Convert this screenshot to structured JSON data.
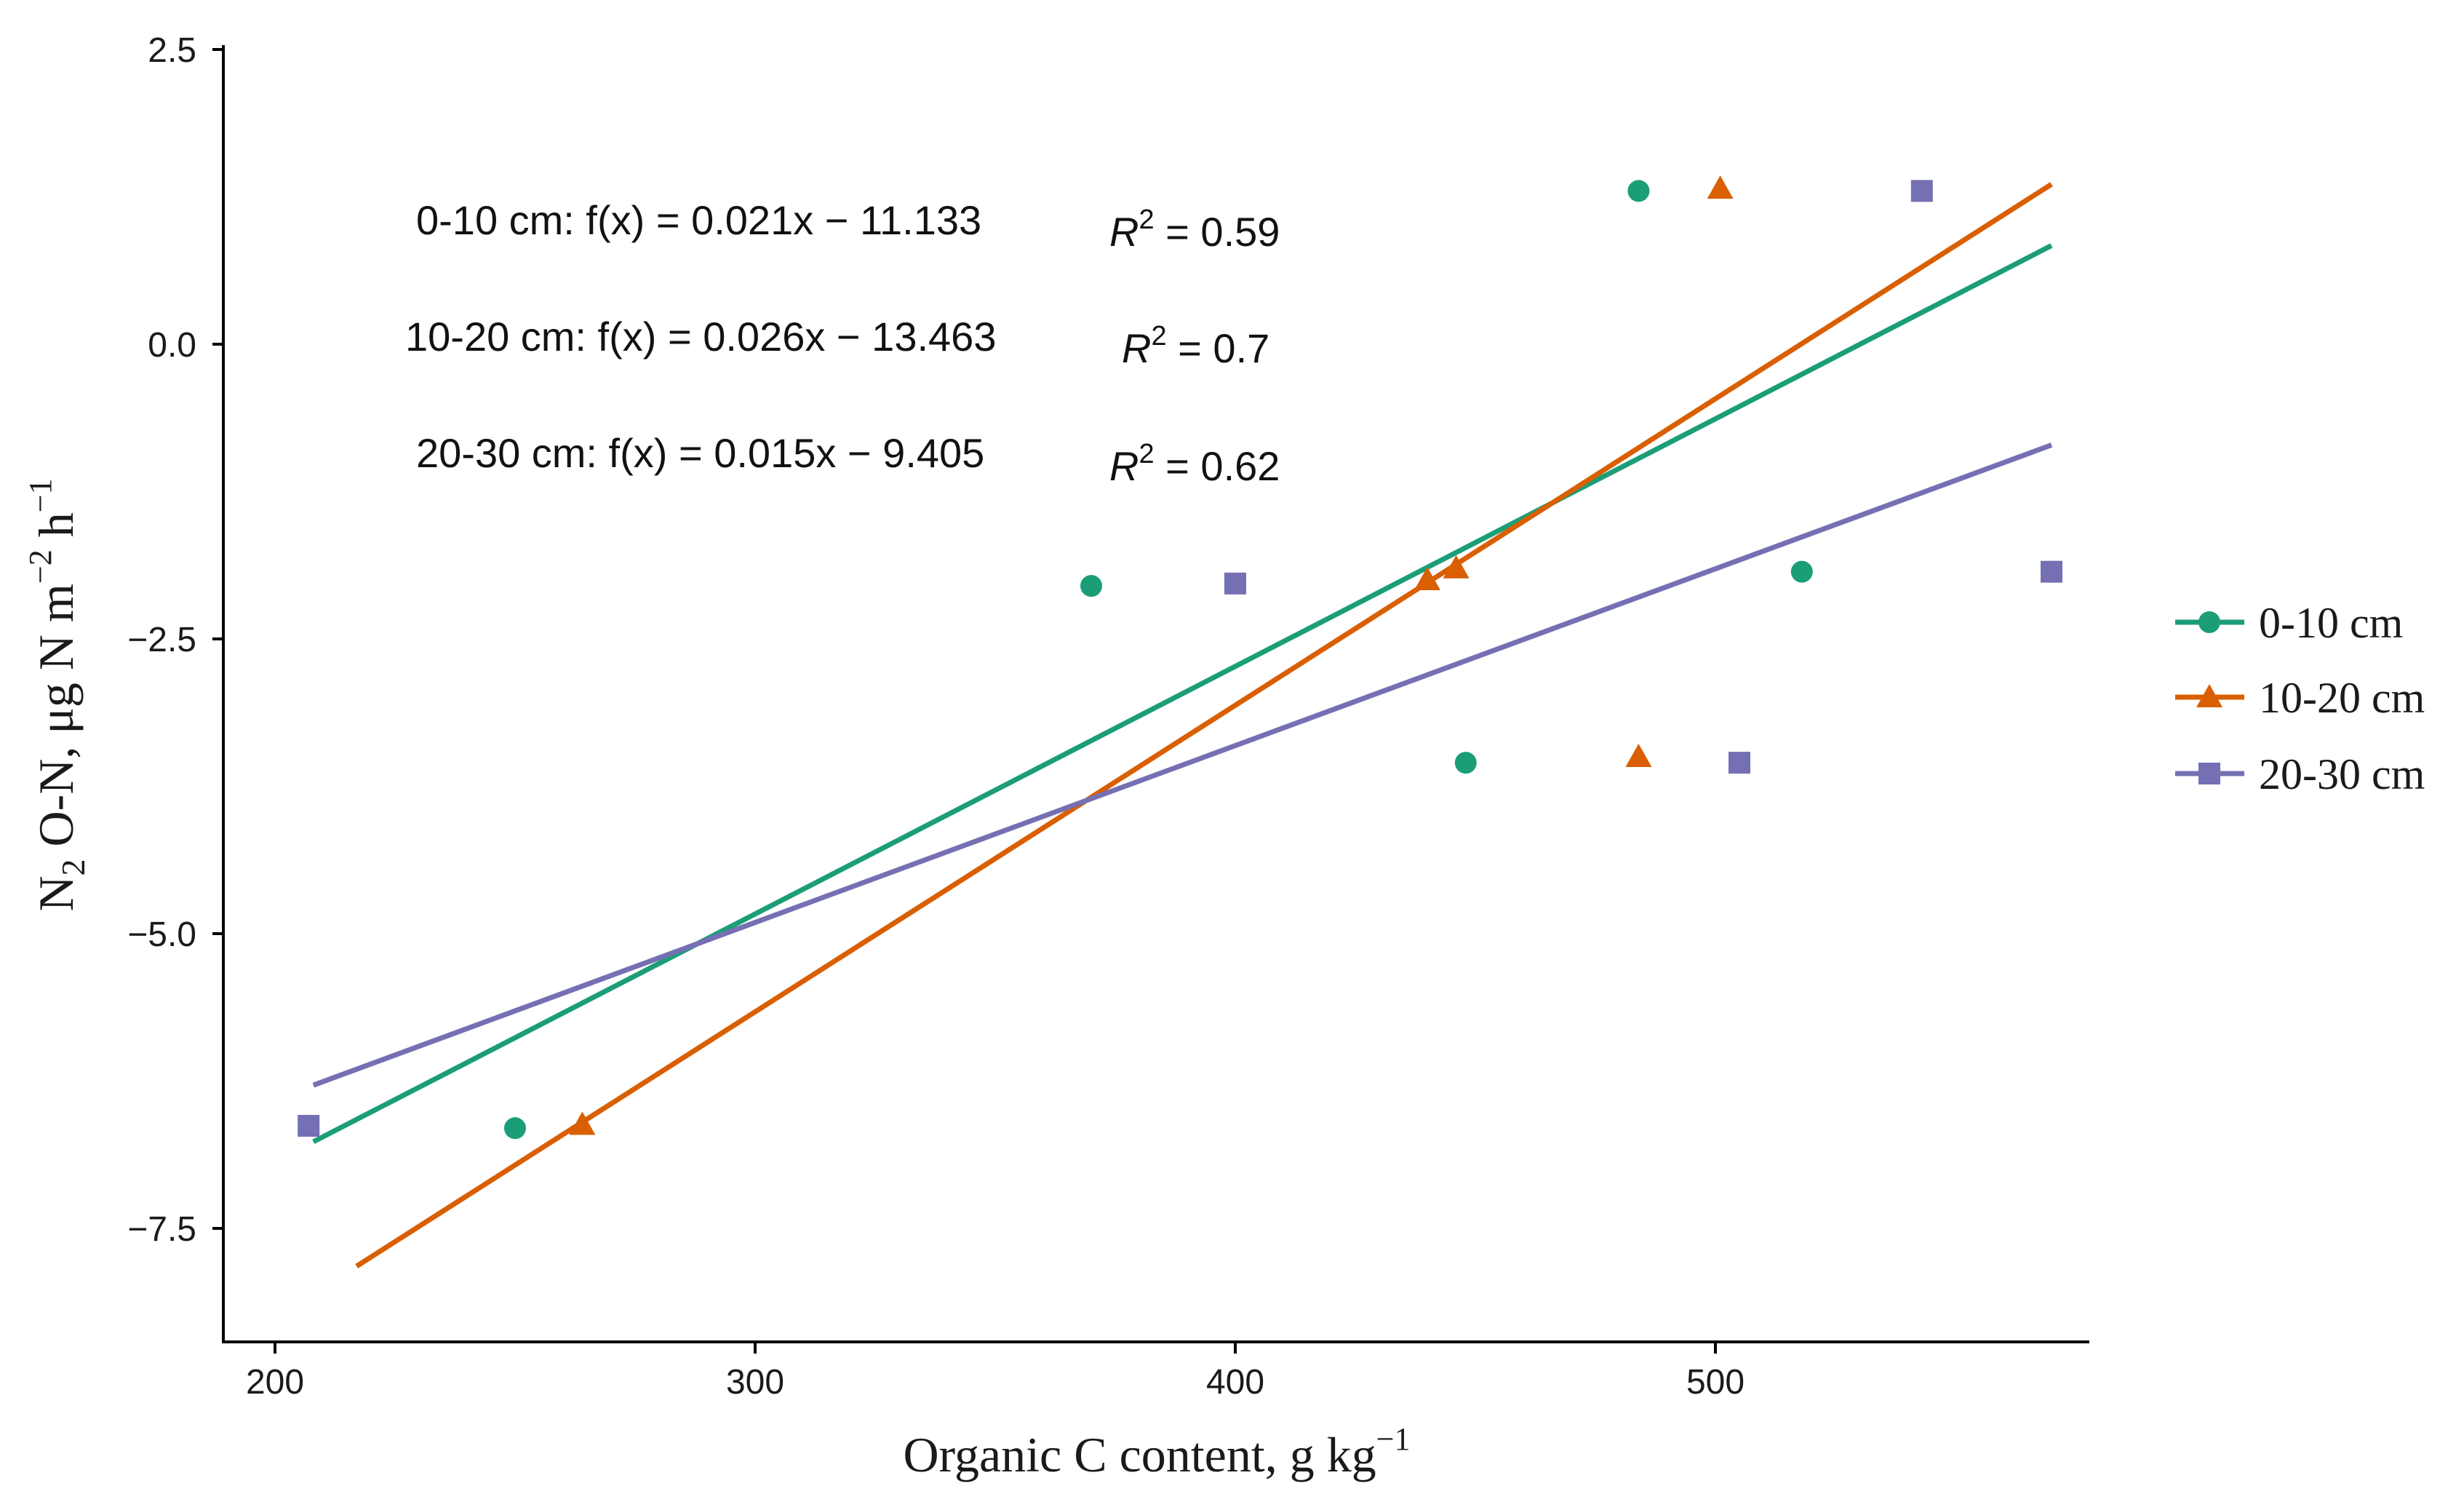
{
  "chart_data": {
    "type": "scatter",
    "title": "",
    "xlabel": "Organic C content, g kg",
    "xlabel_sup": "−1",
    "ylabel_parts": {
      "n": "N",
      "sub2": "2",
      "rest": " O-N, μg N m",
      "sup_m": "−2",
      "h": " h",
      "sup_h": "−1"
    },
    "xlim": [
      190,
      585
    ],
    "ylim": [
      -8.5,
      2.5
    ],
    "xticks": [
      200,
      300,
      400,
      500
    ],
    "xtick_labels": [
      "200",
      "300",
      "400",
      "500"
    ],
    "yticks": [
      2.5,
      0.0,
      -2.5,
      -5.0,
      -7.5
    ],
    "ytick_labels": [
      "2.5",
      "0.0",
      "−2.5",
      "−5.0",
      "−7.5"
    ],
    "grid": false,
    "legend_position": "right",
    "series": [
      {
        "name": "0-10 cm",
        "color": "#1b9e77",
        "marker": "circle",
        "points": [
          [
            250,
            -6.65
          ],
          [
            370,
            -2.05
          ],
          [
            448,
            -3.55
          ],
          [
            484,
            1.3
          ],
          [
            518,
            -1.93
          ]
        ],
        "fit": {
          "slope": 0.021,
          "intercept": -11.133,
          "x_range": [
            208,
            570
          ]
        },
        "equation": "0-10 cm: f(x) = 0.021x − 11.133",
        "r2_value": "0.59"
      },
      {
        "name": "10-20 cm",
        "color": "#d95f02",
        "marker": "triangle",
        "points": [
          [
            264,
            -6.62
          ],
          [
            440,
            -2.0
          ],
          [
            446,
            -1.9
          ],
          [
            484,
            -3.5
          ],
          [
            501,
            1.32
          ]
        ],
        "fit": {
          "slope": 0.026,
          "intercept": -13.463,
          "x_range": [
            217,
            570
          ]
        },
        "equation": "10-20 cm: f(x) = 0.026x − 13.463",
        "r2_value": "0.7"
      },
      {
        "name": "20-30 cm",
        "color": "#7570b3",
        "marker": "square",
        "points": [
          [
            207,
            -6.63
          ],
          [
            400,
            -2.03
          ],
          [
            505,
            -3.55
          ],
          [
            543,
            1.3
          ],
          [
            570,
            -1.93
          ]
        ],
        "fit": {
          "slope": 0.015,
          "intercept": -9.405,
          "x_range": [
            208,
            570
          ]
        },
        "equation": "20-30 cm: f(x) = 0.015x − 9.405",
        "r2_value": "0.62"
      }
    ],
    "r2_symbol": "R",
    "r2_sup": "2",
    "r2_eq": " = "
  }
}
